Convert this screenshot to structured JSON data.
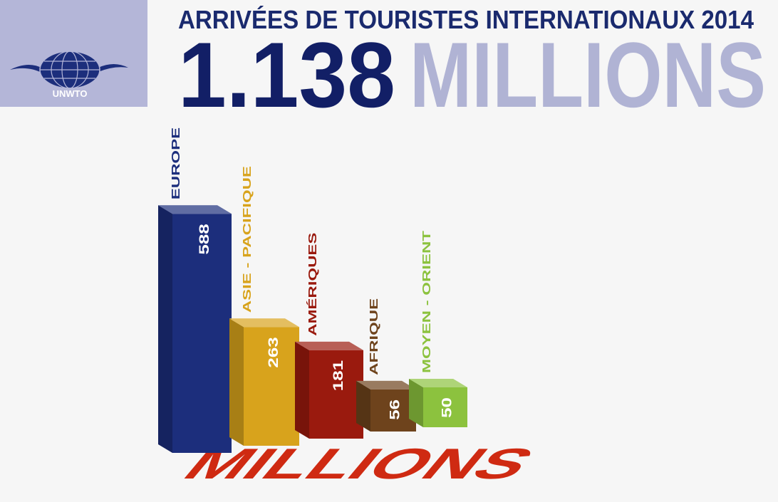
{
  "logo": {
    "label": "UNWTO"
  },
  "chart_data": {
    "type": "bar",
    "title": "ARRIVÉES DE TOURISTES INTERNATIONAUX 2014",
    "headline": "1.138",
    "unit": "MILLIONS",
    "categories": [
      "EUROPE",
      "ASIE - PACIFIQUE",
      "AMÉRIQUES",
      "AFRIQUE",
      "MOYEN - ORIENT"
    ],
    "values": [
      588,
      263,
      181,
      56,
      50
    ],
    "colors": [
      "#1c2e7c",
      "#d8a31c",
      "#9a1a0e",
      "#6e431c",
      "#8cc23e"
    ]
  }
}
